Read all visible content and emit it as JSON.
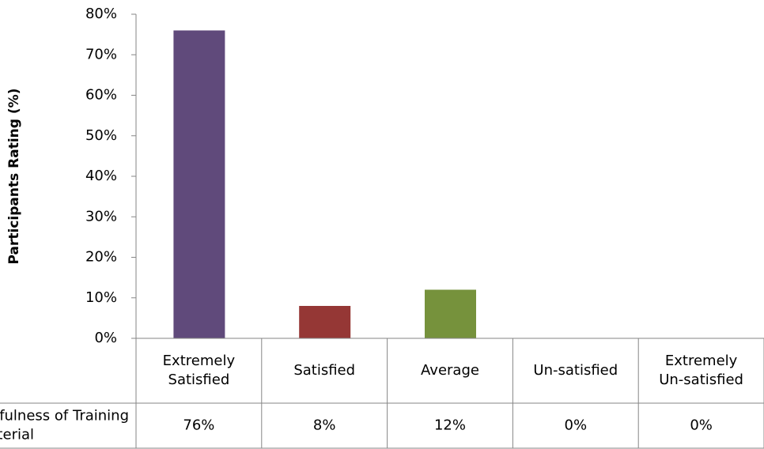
{
  "chart_data": {
    "type": "bar",
    "y_label": "Participants Rating (%)",
    "categories": [
      "Extremely Satisfied",
      "Satisfied",
      "Average",
      "Un-satisfied",
      "Extremely Un-satisfied"
    ],
    "series": [
      {
        "name": "Usefulness of Training Material",
        "values": [
          76,
          8,
          12,
          0,
          0
        ],
        "value_labels": [
          "76%",
          "8%",
          "12%",
          "0%",
          "0%"
        ]
      }
    ],
    "colors": [
      "#604a7b",
      "#953735",
      "#76923c",
      "#4bacc6",
      "#f79646"
    ],
    "ylim": [
      0,
      80
    ],
    "yticks": [
      {
        "value": 0,
        "label": "0%"
      },
      {
        "value": 10,
        "label": "10%"
      },
      {
        "value": 20,
        "label": "20%"
      },
      {
        "value": 30,
        "label": "30%"
      },
      {
        "value": 40,
        "label": "40%"
      },
      {
        "value": 50,
        "label": "50%"
      },
      {
        "value": 60,
        "label": "60%"
      },
      {
        "value": 70,
        "label": "70%"
      },
      {
        "value": 80,
        "label": "80%"
      }
    ],
    "grid": false,
    "data_table": true
  }
}
